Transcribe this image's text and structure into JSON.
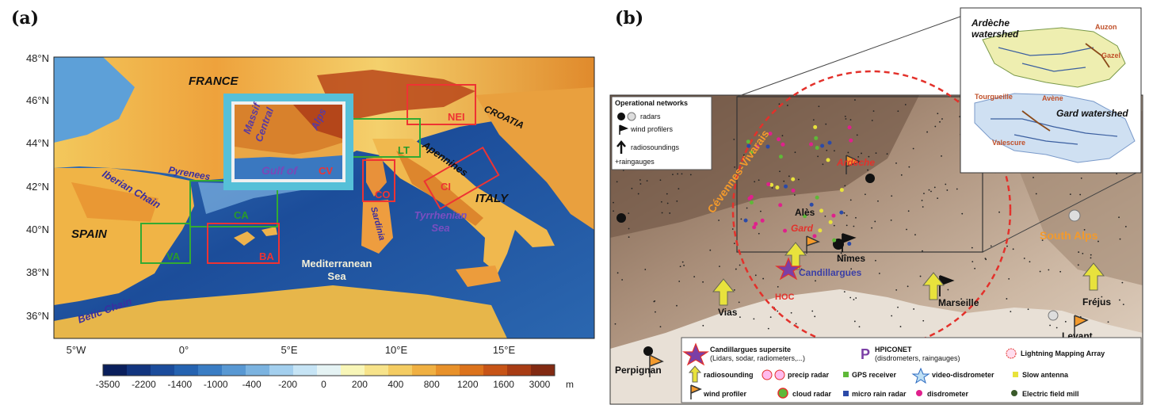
{
  "panel_a": {
    "label": "(a)",
    "lat_ticks": [
      "48°N",
      "46°N",
      "44°N",
      "42°N",
      "40°N",
      "38°N",
      "36°N"
    ],
    "lon_ticks": [
      "5°W",
      "0°",
      "5°E",
      "10°E",
      "15°E"
    ],
    "colorbar": {
      "ticks": [
        "-3500",
        "-2200",
        "-1400",
        "-1000",
        "-400",
        "-200",
        "0",
        "200",
        "400",
        "800",
        "1200",
        "1600",
        "3000"
      ],
      "unit": "m",
      "colors": [
        "#0a1f5c",
        "#12357f",
        "#1b4c9c",
        "#2563b1",
        "#3a7dc4",
        "#5898d3",
        "#7bb3e0",
        "#a3cfee",
        "#c6e4f5",
        "#e5f3f4",
        "#f8f6b8",
        "#f7e38a",
        "#f4cc62",
        "#f0b042",
        "#e8912a",
        "#dc731c",
        "#c75417",
        "#a83c14",
        "#822a12"
      ]
    },
    "places": {
      "france": "FRANCE",
      "spain": "SPAIN",
      "italy": "ITALY",
      "croatia": "CROATIA",
      "med_sea_1": "Mediterranean",
      "med_sea_2": "Sea",
      "tyrr_1": "Tyrrhenian",
      "tyrr_2": "Sea",
      "iberian": "Iberian Chain",
      "betic": "Betic Chain",
      "pyrenees": "Pyrenees",
      "apennines": "Apennines",
      "sardinia": "Sardinia",
      "massif_1": "Massif",
      "massif_2": "Central",
      "alps": "Alps",
      "gulf": "Gulf of",
      "cv": "CV"
    },
    "regions": {
      "nei": "NEI",
      "lt": "LT",
      "co": "CO",
      "ci": "CI",
      "ca": "CA",
      "ba": "BA",
      "va": "VA"
    }
  },
  "panel_b": {
    "label": "(b)",
    "legend_title": "Operational networks",
    "legend_items": [
      "radars",
      "wind profilers",
      "radiosoundings",
      "+raingauges"
    ],
    "inset": {
      "ardeche_1": "Ardèche",
      "ardeche_2": "watershed",
      "gard": "Gard watershed",
      "auzon": "Auzon",
      "gazel": "Gazel",
      "tourgueille": "Tourgueille",
      "avene": "Avène",
      "valescure": "Valescure"
    },
    "places": {
      "ardeche": "Ardèche",
      "ales": "Alès",
      "gard": "Gard",
      "nimes": "Nîmes",
      "candillargues": "Candillargues",
      "hoc": "HOC",
      "vias": "Vias",
      "marseille": "Marseille",
      "frejus": "Fréjus",
      "levant": "Levant",
      "perpignan": "Perpignan",
      "south_alps": "South Alps",
      "cevennes": "Cévennes-Vivarais"
    },
    "bottom_legend": {
      "supersite_1": "Candillargues supersite",
      "supersite_2": "(Lidars, sodar, radiometers,...)",
      "hpiconet_1": "HPICONET",
      "hpiconet_2": "(disdrometers, raingauges)",
      "lma": "Lightning Mapping Array",
      "radiosounding": "radiosounding",
      "precip_radar": "precip radar",
      "gps": "GPS  receiver",
      "video_disdrometer": "video-disdrometer",
      "slow_antenna": "Slow antenna",
      "wind_profiler": "wind profiler",
      "cloud_radar": "cloud radar",
      "micro_rain_radar": "micro rain radar",
      "disdrometer": "disdrometer",
      "efm": "Electric field mill"
    },
    "colors": {
      "circle": "#e3312b",
      "accent_orange": "#f39a2c",
      "yellow_arrow": "#e8e23c",
      "purple": "#7b3fa6",
      "magenta": "#e0208c",
      "gps_green": "#5fb838",
      "mrr_blue": "#2b4aa8"
    }
  }
}
